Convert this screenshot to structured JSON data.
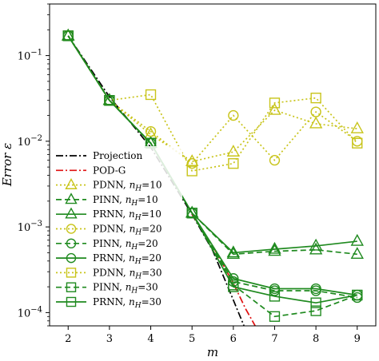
{
  "chart_data": {
    "type": "line",
    "xlabel": "m",
    "ylabel": "Error ε",
    "yscale": "log",
    "xlim": [
      1.55,
      9.45
    ],
    "ylim": [
      7e-05,
      0.4
    ],
    "x_ticks": [
      2,
      3,
      4,
      5,
      6,
      7,
      8,
      9
    ],
    "x_tick_labels": [
      "2",
      "3",
      "4",
      "5",
      "6",
      "7",
      "8",
      "9"
    ],
    "y_ticks": [
      0.1,
      0.01,
      0.001,
      0.0001
    ],
    "y_tick_labels": [
      "10^-1",
      "10^-2",
      "10^-3",
      "10^-4"
    ],
    "legend_position": "lower-left",
    "colors": {
      "olive": "#c8c41a",
      "green": "#1f8a1f",
      "black": "#000000",
      "red": "#e01010"
    },
    "series": [
      {
        "name": "Projection",
        "label_base": "Projection",
        "label_sub": "",
        "color": "#000000",
        "dash": "dashdot",
        "marker": "none",
        "x": [
          2,
          3,
          4,
          5,
          5.5,
          6,
          6.6
        ],
        "y": [
          0.17,
          0.033,
          0.0085,
          0.0014,
          0.00053,
          0.00014,
          2.8e-05
        ]
      },
      {
        "name": "POD-G",
        "label_base": "POD-G",
        "label_sub": "",
        "color": "#e01010",
        "dash": "dashdot",
        "marker": "none",
        "x": [
          5,
          5.5,
          6,
          6.3,
          6.7
        ],
        "y": [
          0.0014,
          0.0006,
          0.00022,
          0.00011,
          5e-05
        ]
      },
      {
        "name": "PDNN, nH=10",
        "label_base": "PDNN, ",
        "label_sub": "10",
        "color": "#c8c41a",
        "dash": "dotted",
        "marker": "triangle",
        "x": [
          2,
          3,
          4,
          5,
          6,
          7,
          8,
          9
        ],
        "y": [
          0.17,
          0.03,
          0.012,
          0.0058,
          0.0075,
          0.023,
          0.016,
          0.014
        ]
      },
      {
        "name": "PINN, nH=10",
        "label_base": "PINN, ",
        "label_sub": "10",
        "color": "#1f8a1f",
        "dash": "dashed",
        "marker": "triangle",
        "x": [
          2,
          3,
          4,
          5,
          6,
          7,
          8,
          9
        ],
        "y": [
          0.17,
          0.03,
          0.0095,
          0.00145,
          0.00048,
          0.00052,
          0.00054,
          0.00048
        ]
      },
      {
        "name": "PRNN, nH=10",
        "label_base": "PRNN, ",
        "label_sub": "10",
        "color": "#1f8a1f",
        "dash": "solid",
        "marker": "triangle",
        "x": [
          2,
          3,
          4,
          5,
          6,
          7,
          8,
          9
        ],
        "y": [
          0.17,
          0.03,
          0.0095,
          0.00145,
          0.0005,
          0.00055,
          0.0006,
          0.00068
        ]
      },
      {
        "name": "PDNN, nH=20",
        "label_base": "PDNN, ",
        "label_sub": "20",
        "color": "#c8c41a",
        "dash": "dotted",
        "marker": "circle",
        "x": [
          2,
          3,
          4,
          5,
          6,
          7,
          8,
          9
        ],
        "y": [
          0.17,
          0.03,
          0.013,
          0.0055,
          0.02,
          0.006,
          0.022,
          0.01
        ]
      },
      {
        "name": "PINN, nH=20",
        "label_base": "PINN, ",
        "label_sub": "20",
        "color": "#1f8a1f",
        "dash": "dashed",
        "marker": "circle",
        "x": [
          2,
          3,
          4,
          5,
          6,
          7,
          8,
          9
        ],
        "y": [
          0.17,
          0.03,
          0.0095,
          0.00145,
          0.00023,
          0.00018,
          0.00018,
          0.00015
        ]
      },
      {
        "name": "PRNN, nH=20",
        "label_base": "PRNN, ",
        "label_sub": "20",
        "color": "#1f8a1f",
        "dash": "solid",
        "marker": "circle",
        "x": [
          2,
          3,
          4,
          5,
          6,
          7,
          8,
          9
        ],
        "y": [
          0.17,
          0.03,
          0.0095,
          0.00145,
          0.00025,
          0.00019,
          0.00019,
          0.00016
        ]
      },
      {
        "name": "PDNN, nH=30",
        "label_base": "PDNN, ",
        "label_sub": "30",
        "color": "#c8c41a",
        "dash": "dotted",
        "marker": "square",
        "x": [
          2,
          3,
          4,
          5,
          6,
          7,
          8,
          9
        ],
        "y": [
          0.17,
          0.03,
          0.035,
          0.0045,
          0.0055,
          0.028,
          0.032,
          0.0095
        ]
      },
      {
        "name": "PINN, nH=30",
        "label_base": "PINN, ",
        "label_sub": "30",
        "color": "#1f8a1f",
        "dash": "dashed",
        "marker": "square",
        "x": [
          2,
          3,
          4,
          5,
          6,
          7,
          8,
          9
        ],
        "y": [
          0.17,
          0.03,
          0.0095,
          0.00145,
          0.00021,
          9e-05,
          0.000105,
          0.00016
        ]
      },
      {
        "name": "PRNN, nH=30",
        "label_base": "PRNN, ",
        "label_sub": "30",
        "color": "#1f8a1f",
        "dash": "solid",
        "marker": "square",
        "x": [
          2,
          3,
          4,
          5,
          6,
          7,
          8,
          9
        ],
        "y": [
          0.17,
          0.03,
          0.0095,
          0.00145,
          0.0002,
          0.000155,
          0.00013,
          0.00016
        ]
      }
    ]
  }
}
